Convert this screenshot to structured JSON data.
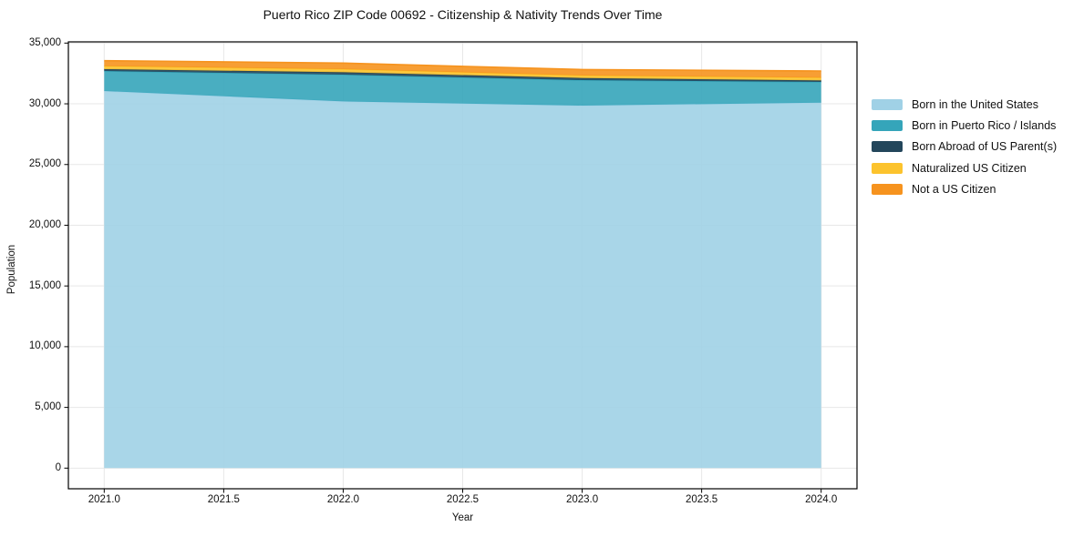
{
  "figure": {
    "title": "Puerto Rico ZIP Code 00692 - Citizenship & Nativity Trends Over Time",
    "xlabel": "Year",
    "ylabel": "Population"
  },
  "chart_data": {
    "type": "area",
    "stacked": true,
    "title": "Puerto Rico ZIP Code 00692 - Citizenship & Nativity Trends Over Time",
    "xlabel": "Year",
    "ylabel": "Population",
    "x": [
      2021,
      2022,
      2023,
      2024
    ],
    "series": [
      {
        "name": "Born in the United States",
        "color": "#a0d1e6",
        "values": [
          31050,
          30200,
          29850,
          30100
        ]
      },
      {
        "name": "Born in Puerto Rico / Islands",
        "color": "#35a5ba",
        "values": [
          1650,
          2200,
          2100,
          1700
        ]
      },
      {
        "name": "Born Abroad of US Parent(s)",
        "color": "#23465b",
        "values": [
          150,
          200,
          175,
          125
        ]
      },
      {
        "name": "Naturalized US Citizen",
        "color": "#fcc32d",
        "values": [
          250,
          250,
          200,
          225
        ]
      },
      {
        "name": "Not a US Citizen",
        "color": "#f6931e",
        "values": [
          450,
          500,
          500,
          550
        ]
      }
    ],
    "stack_totals": [
      33550,
      33350,
      32825,
      32700
    ],
    "xlim": [
      2020.85,
      2024.15
    ],
    "ylim": [
      -1700,
      35100
    ],
    "xticks": [
      2021.0,
      2021.5,
      2022.0,
      2022.5,
      2023.0,
      2023.5,
      2024.0
    ],
    "xtick_labels": [
      "2021.0",
      "2021.5",
      "2022.0",
      "2022.5",
      "2023.0",
      "2023.5",
      "2024.0"
    ],
    "yticks": [
      0,
      5000,
      10000,
      15000,
      20000,
      25000,
      30000,
      35000
    ],
    "ytick_labels": [
      "0",
      "5,000",
      "10,000",
      "15,000",
      "20,000",
      "25,000",
      "30,000",
      "35,000"
    ],
    "grid": true,
    "grid_color": "#e7e7e7",
    "spine_color": "#000000",
    "legend_position": "right"
  }
}
